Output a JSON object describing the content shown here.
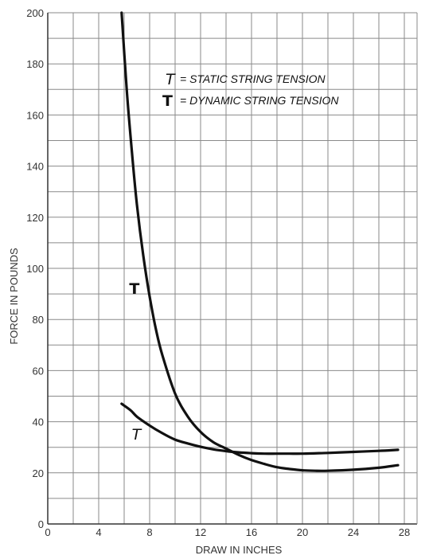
{
  "chart_data": {
    "type": "line",
    "xlabel": "DRAW IN INCHES",
    "ylabel": "FORCE IN POUNDS",
    "xlim": [
      0,
      29
    ],
    "ylim": [
      0,
      200
    ],
    "x_ticks": [
      0,
      4,
      8,
      12,
      16,
      20,
      24,
      28
    ],
    "y_ticks": [
      0,
      20,
      40,
      60,
      80,
      100,
      120,
      140,
      160,
      180,
      200
    ],
    "grid": true,
    "grid_x_step": 2,
    "grid_y_step": 10,
    "legend": [
      {
        "symbol": "T",
        "symbol_style": "italic",
        "text": "= STATIC STRING TENSION"
      },
      {
        "symbol": "T",
        "symbol_style": "bold",
        "text": "= DYNAMIC STRING TENSION"
      }
    ],
    "series": [
      {
        "label": "T",
        "label_style": "bold",
        "color": "#111111",
        "x": [
          5.8,
          6.2,
          6.6,
          7.0,
          7.5,
          8.0,
          8.5,
          9.0,
          10.0,
          11.0,
          12.0,
          13.0,
          14.0,
          15.0,
          16.0,
          17.0,
          18.0,
          19.0,
          20.0,
          21.0,
          22.0,
          24.0,
          26.0,
          27.5
        ],
        "y": [
          200,
          170,
          146,
          125,
          105,
          89,
          76,
          66,
          51,
          42,
          36,
          32,
          29.5,
          27,
          25,
          23.5,
          22.2,
          21.5,
          21,
          20.8,
          20.8,
          21.2,
          22.0,
          23
        ]
      },
      {
        "label": "T",
        "label_style": "italic",
        "color": "#111111",
        "x": [
          5.8,
          6.5,
          7.0,
          8.0,
          9.0,
          10.0,
          11.0,
          12.0,
          13.0,
          14.0,
          15.0,
          16.0,
          17.0,
          18.0,
          19.0,
          20.0,
          22.0,
          24.0,
          26.0,
          27.5
        ],
        "y": [
          47,
          44.5,
          42,
          38.5,
          35.5,
          33,
          31.5,
          30.2,
          29.2,
          28.5,
          28,
          27.7,
          27.5,
          27.5,
          27.5,
          27.5,
          27.8,
          28.2,
          28.6,
          29
        ]
      }
    ]
  }
}
